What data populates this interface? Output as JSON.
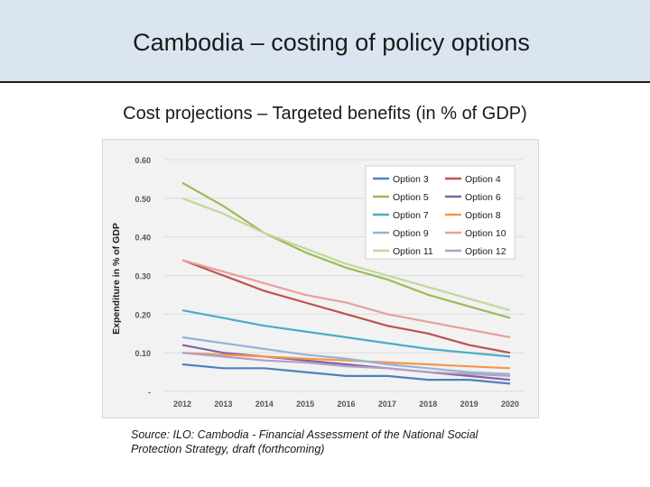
{
  "slide": {
    "title": "Cambodia – costing of policy options",
    "chart_heading": "Cost projections – Targeted benefits (in % of GDP)",
    "source_line1": "Source: ILO: Cambodia - Financial Assessment of the National Social",
    "source_line2": "Protection Strategy, draft (forthcoming)"
  },
  "chart_data": {
    "type": "line",
    "title": "Cost projections – Targeted benefits (in % of GDP)",
    "xlabel": "",
    "ylabel": "Expenditure in % of GDP",
    "ylim": [
      0,
      0.6
    ],
    "yticks": [
      0,
      0.1,
      0.2,
      0.3,
      0.4,
      0.5,
      0.6
    ],
    "ytick_labels": [
      "-",
      "0.10",
      "0.20",
      "0.30",
      "0.40",
      "0.50",
      "0.60"
    ],
    "legend_position": "top-right",
    "x": [
      "2012",
      "2013",
      "2014",
      "2015",
      "2016",
      "2017",
      "2018",
      "2019",
      "2020"
    ],
    "series": [
      {
        "name": "Option 3",
        "color": "#4f81bd",
        "values": [
          0.07,
          0.06,
          0.06,
          0.05,
          0.04,
          0.04,
          0.03,
          0.03,
          0.02
        ]
      },
      {
        "name": "Option 4",
        "color": "#c0504d",
        "values": [
          0.34,
          0.3,
          0.26,
          0.23,
          0.2,
          0.17,
          0.15,
          0.12,
          0.1
        ]
      },
      {
        "name": "Option 5",
        "color": "#9bbb59",
        "values": [
          0.54,
          0.48,
          0.41,
          0.36,
          0.32,
          0.29,
          0.25,
          0.22,
          0.19
        ]
      },
      {
        "name": "Option 6",
        "color": "#8064a2",
        "values": [
          0.12,
          0.1,
          0.09,
          0.08,
          0.07,
          0.06,
          0.05,
          0.04,
          0.03
        ]
      },
      {
        "name": "Option 7",
        "color": "#4bacc6",
        "values": [
          0.21,
          0.19,
          0.17,
          0.155,
          0.14,
          0.125,
          0.11,
          0.1,
          0.09
        ]
      },
      {
        "name": "Option 8",
        "color": "#f79646",
        "values": [
          0.1,
          0.095,
          0.09,
          0.085,
          0.08,
          0.075,
          0.07,
          0.065,
          0.06
        ]
      },
      {
        "name": "Option 9",
        "color": "#95b3d7",
        "values": [
          0.14,
          0.125,
          0.11,
          0.095,
          0.085,
          0.07,
          0.06,
          0.05,
          0.045
        ]
      },
      {
        "name": "Option 10",
        "color": "#e6a0a0",
        "values": [
          0.34,
          0.31,
          0.28,
          0.25,
          0.23,
          0.2,
          0.18,
          0.16,
          0.14
        ]
      },
      {
        "name": "Option 11",
        "color": "#c4d79b",
        "values": [
          0.5,
          0.46,
          0.41,
          0.37,
          0.33,
          0.3,
          0.27,
          0.24,
          0.21
        ]
      },
      {
        "name": "Option 12",
        "color": "#b1a0c7",
        "values": [
          0.1,
          0.09,
          0.08,
          0.075,
          0.065,
          0.06,
          0.05,
          0.045,
          0.04
        ]
      }
    ]
  }
}
